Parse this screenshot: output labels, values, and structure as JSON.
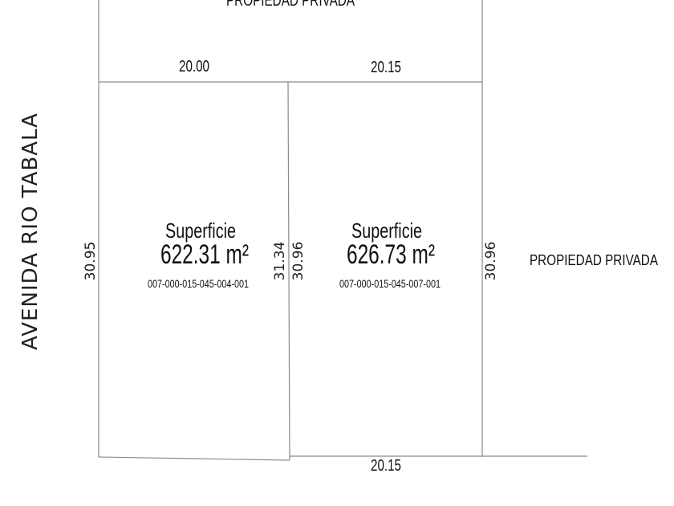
{
  "street_label": "AVENIDA RIO TABALA",
  "neighbor_top": "PROPIEDAD PRIVADA",
  "neighbor_right": "PROPIEDAD PRIVADA",
  "dimensions": {
    "top_left": "20.00",
    "top_right": "20.15",
    "bottom": "20.15",
    "left": "30.95",
    "middle_left": "31.34",
    "middle_right": "30.96",
    "right": "30.96"
  },
  "lots": [
    {
      "area_label": "Superficie",
      "area": "622.31 m²",
      "cadastral_id": "007-000-015-045-004-001"
    },
    {
      "area_label": "Superficie",
      "area": "626.73 m²",
      "cadastral_id": "007-000-015-045-007-001"
    }
  ]
}
